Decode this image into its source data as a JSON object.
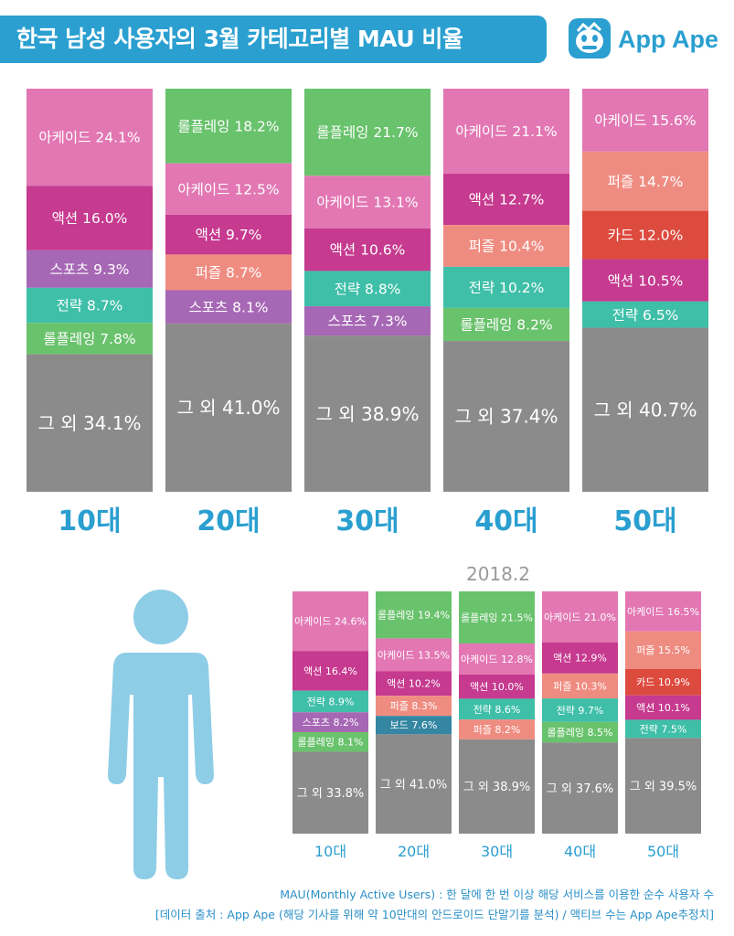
{
  "header": {
    "title": "한국 남성 사용자의 3월 카테고리별 MAU 비율",
    "brand": "App Ape"
  },
  "colors": {
    "아케이드": "#e277b3",
    "액션": "#c63a8f",
    "스포츠": "#a667b5",
    "전략": "#3fbfa8",
    "롤플레잉": "#69c26c",
    "퍼즐": "#ef8c81",
    "카드": "#dd4a3e",
    "보드": "#3486a3",
    "그 외": "#8b8b8b",
    "accent": "#2a9fd0"
  },
  "chart_data": [
    {
      "type": "bar",
      "stacked": true,
      "percent": true,
      "title": "",
      "categories": [
        "10대",
        "20대",
        "30대",
        "40대",
        "50대"
      ],
      "stacks": [
        [
          {
            "name": "아케이드",
            "value": 24.1
          },
          {
            "name": "액션",
            "value": 16.0
          },
          {
            "name": "스포츠",
            "value": 9.3
          },
          {
            "name": "전략",
            "value": 8.7
          },
          {
            "name": "롤플레잉",
            "value": 7.8
          },
          {
            "name": "그 외",
            "value": 34.1
          }
        ],
        [
          {
            "name": "롤플레잉",
            "value": 18.2
          },
          {
            "name": "아케이드",
            "value": 12.5
          },
          {
            "name": "액션",
            "value": 9.7
          },
          {
            "name": "퍼즐",
            "value": 8.7
          },
          {
            "name": "스포츠",
            "value": 8.1
          },
          {
            "name": "그 외",
            "value": 41.0
          }
        ],
        [
          {
            "name": "롤플레잉",
            "value": 21.7
          },
          {
            "name": "아케이드",
            "value": 13.1
          },
          {
            "name": "액션",
            "value": 10.6
          },
          {
            "name": "전략",
            "value": 8.8
          },
          {
            "name": "스포츠",
            "value": 7.3
          },
          {
            "name": "그 외",
            "value": 38.9
          }
        ],
        [
          {
            "name": "아케이드",
            "value": 21.1
          },
          {
            "name": "액션",
            "value": 12.7
          },
          {
            "name": "퍼즐",
            "value": 10.4
          },
          {
            "name": "전략",
            "value": 10.2
          },
          {
            "name": "롤플레잉",
            "value": 8.2
          },
          {
            "name": "그 외",
            "value": 37.4
          }
        ],
        [
          {
            "name": "아케이드",
            "value": 15.6
          },
          {
            "name": "퍼즐",
            "value": 14.7
          },
          {
            "name": "카드",
            "value": 12.0
          },
          {
            "name": "액션",
            "value": 10.5
          },
          {
            "name": "전략",
            "value": 6.5
          },
          {
            "name": "그 외",
            "value": 40.7
          }
        ]
      ]
    },
    {
      "type": "bar",
      "stacked": true,
      "percent": true,
      "title": "2018.2",
      "categories": [
        "10대",
        "20대",
        "30대",
        "40대",
        "50대"
      ],
      "stacks": [
        [
          {
            "name": "아케이드",
            "value": 24.6
          },
          {
            "name": "액션",
            "value": 16.4
          },
          {
            "name": "전략",
            "value": 8.9
          },
          {
            "name": "스포츠",
            "value": 8.2
          },
          {
            "name": "롤플레잉",
            "value": 8.1
          },
          {
            "name": "그 외",
            "value": 33.8
          }
        ],
        [
          {
            "name": "롤플레잉",
            "value": 19.4
          },
          {
            "name": "아케이드",
            "value": 13.5
          },
          {
            "name": "액션",
            "value": 10.2
          },
          {
            "name": "퍼즐",
            "value": 8.3
          },
          {
            "name": "보드",
            "value": 7.6
          },
          {
            "name": "그 외",
            "value": 41.0
          }
        ],
        [
          {
            "name": "롤플레잉",
            "value": 21.5
          },
          {
            "name": "아케이드",
            "value": 12.8
          },
          {
            "name": "액션",
            "value": 10.0
          },
          {
            "name": "전략",
            "value": 8.6
          },
          {
            "name": "퍼즐",
            "value": 8.2
          },
          {
            "name": "그 외",
            "value": 38.9
          }
        ],
        [
          {
            "name": "아케이드",
            "value": 21.0
          },
          {
            "name": "액션",
            "value": 12.9
          },
          {
            "name": "퍼즐",
            "value": 10.3
          },
          {
            "name": "전략",
            "value": 9.7
          },
          {
            "name": "롤플레잉",
            "value": 8.5
          },
          {
            "name": "그 외",
            "value": 37.6
          }
        ],
        [
          {
            "name": "아케이드",
            "value": 16.5
          },
          {
            "name": "퍼즐",
            "value": 15.5
          },
          {
            "name": "카드",
            "value": 10.9
          },
          {
            "name": "액션",
            "value": 10.1
          },
          {
            "name": "전략",
            "value": 7.5
          },
          {
            "name": "그 외",
            "value": 39.5
          }
        ]
      ]
    }
  ],
  "footnotes": {
    "line1": "MAU(Monthly Active Users) : 한 달에 한 번 이상 해당 서비스를 이용한 순수 사용자 수",
    "line2": "[데이터 출처 : App Ape (해당 기사를 위해 약 10만대의 안드로이드 단말기를 분석) / 액티브 수는 App Ape추정치]"
  }
}
